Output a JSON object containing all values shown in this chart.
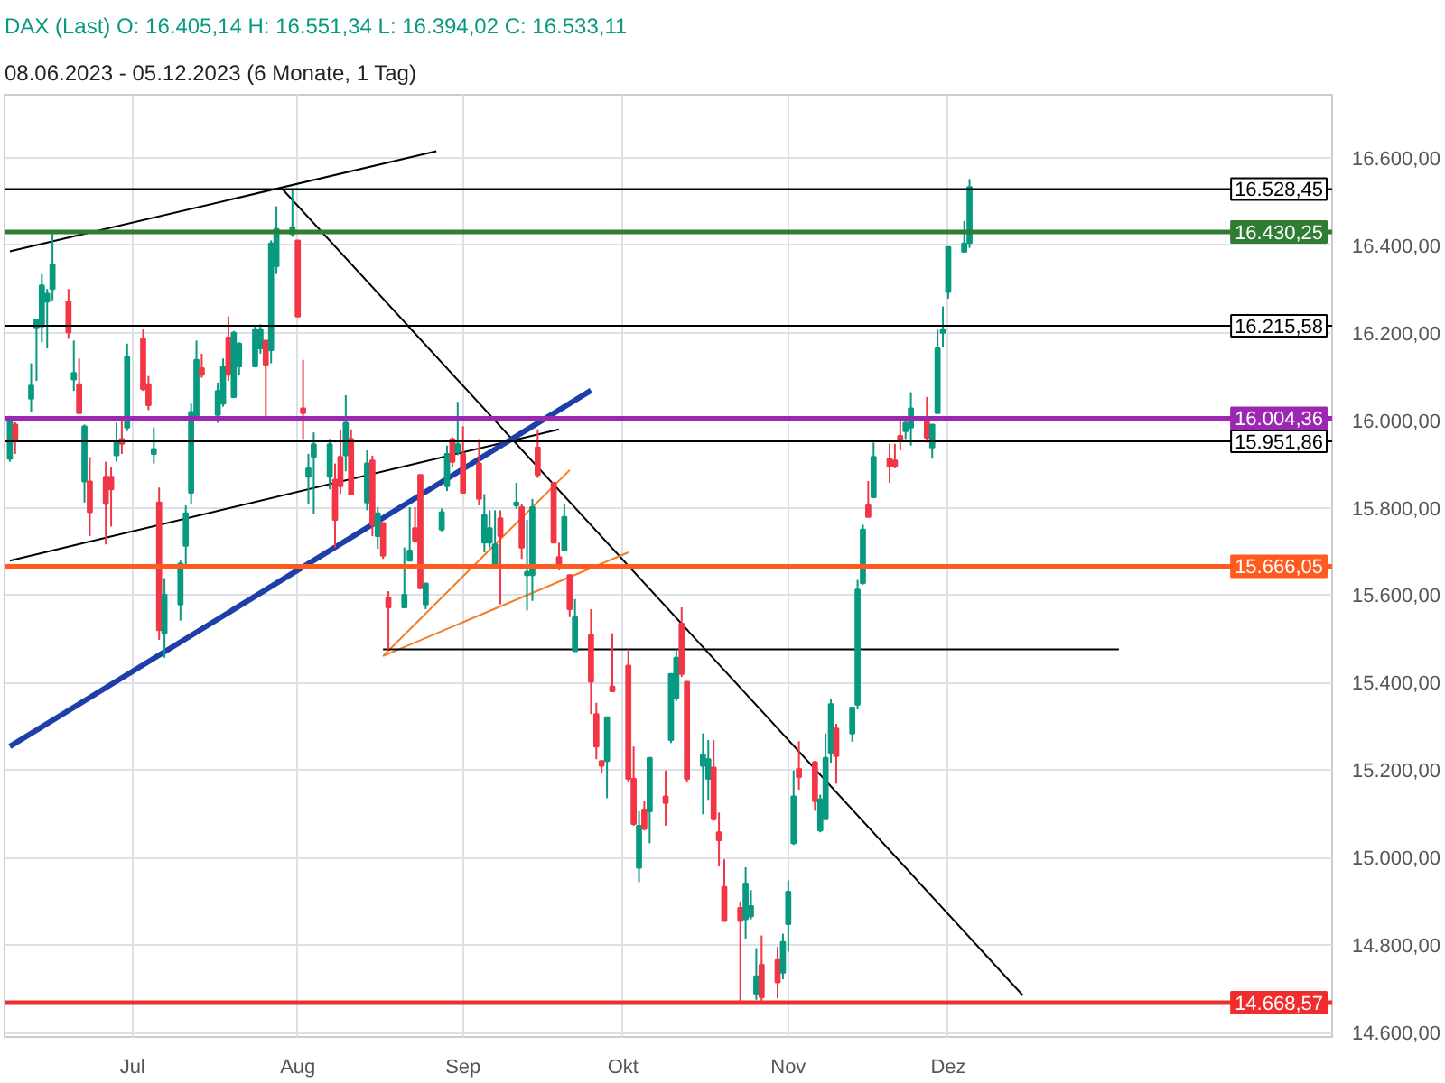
{
  "chart_data": {
    "type": "candlestick",
    "title": "DAX (Last)  O: 16.405,14  H: 16.551,34  L: 16.394,02  C: 16.533,11",
    "subtitle": "08.06.2023 - 05.12.2023   (6 Monate, 1 Tag)",
    "x": [
      "2023-06-08",
      "2023-06-09",
      "2023-06-12",
      "2023-06-13",
      "2023-06-14",
      "2023-06-15",
      "2023-06-16",
      "2023-06-19",
      "2023-06-20",
      "2023-06-21",
      "2023-06-22",
      "2023-06-23",
      "2023-06-26",
      "2023-06-27",
      "2023-06-28",
      "2023-06-29",
      "2023-06-30",
      "2023-07-03",
      "2023-07-04",
      "2023-07-05",
      "2023-07-06",
      "2023-07-07",
      "2023-07-10",
      "2023-07-11",
      "2023-07-12",
      "2023-07-13",
      "2023-07-14",
      "2023-07-17",
      "2023-07-18",
      "2023-07-19",
      "2023-07-20",
      "2023-07-21",
      "2023-07-24",
      "2023-07-25",
      "2023-07-26",
      "2023-07-27",
      "2023-07-28",
      "2023-07-31",
      "2023-08-01",
      "2023-08-02",
      "2023-08-03",
      "2023-08-04",
      "2023-08-07",
      "2023-08-08",
      "2023-08-09",
      "2023-08-10",
      "2023-08-11",
      "2023-08-14",
      "2023-08-15",
      "2023-08-16",
      "2023-08-17",
      "2023-08-18",
      "2023-08-21",
      "2023-08-22",
      "2023-08-23",
      "2023-08-24",
      "2023-08-25",
      "2023-08-28",
      "2023-08-29",
      "2023-08-30",
      "2023-08-31",
      "2023-09-01",
      "2023-09-04",
      "2023-09-05",
      "2023-09-06",
      "2023-09-07",
      "2023-09-08",
      "2023-09-11",
      "2023-09-12",
      "2023-09-13",
      "2023-09-14",
      "2023-09-15",
      "2023-09-18",
      "2023-09-19",
      "2023-09-20",
      "2023-09-21",
      "2023-09-22",
      "2023-09-25",
      "2023-09-26",
      "2023-09-27",
      "2023-09-28",
      "2023-09-29",
      "2023-10-02",
      "2023-10-03",
      "2023-10-04",
      "2023-10-05",
      "2023-10-06",
      "2023-10-09",
      "2023-10-10",
      "2023-10-11",
      "2023-10-12",
      "2023-10-13",
      "2023-10-16",
      "2023-10-17",
      "2023-10-18",
      "2023-10-19",
      "2023-10-20",
      "2023-10-23",
      "2023-10-24",
      "2023-10-25",
      "2023-10-26",
      "2023-10-27",
      "2023-10-30",
      "2023-10-31",
      "2023-11-01",
      "2023-11-02",
      "2023-11-03",
      "2023-11-06",
      "2023-11-07",
      "2023-11-08",
      "2023-11-09",
      "2023-11-10",
      "2023-11-13",
      "2023-11-14",
      "2023-11-15",
      "2023-11-16",
      "2023-11-17",
      "2023-11-20",
      "2023-11-21",
      "2023-11-22",
      "2023-11-23",
      "2023-11-24",
      "2023-11-27",
      "2023-11-28",
      "2023-11-29",
      "2023-11-30",
      "2023-12-01",
      "2023-12-04",
      "2023-12-05"
    ],
    "ohlc": [
      [
        15912,
        16010,
        15905,
        16000
      ],
      [
        15990,
        15995,
        15923,
        15957
      ],
      [
        16049,
        16130,
        16019,
        16079
      ],
      [
        16212,
        16232,
        16090,
        16230
      ],
      [
        16215,
        16334,
        16178,
        16308
      ],
      [
        16271,
        16300,
        16164,
        16289
      ],
      [
        16300,
        16430,
        16274,
        16356
      ],
      [
        16271,
        16300,
        16186,
        16201
      ],
      [
        16093,
        16182,
        16067,
        16108
      ],
      [
        16082,
        16141,
        16016,
        16016
      ],
      [
        15860,
        15990,
        15812,
        15986
      ],
      [
        15860,
        15916,
        15735,
        15790
      ],
      [
        15871,
        15905,
        15716,
        15809
      ],
      [
        15871,
        15894,
        15757,
        15842
      ],
      [
        15920,
        15994,
        15905,
        15949
      ],
      [
        15957,
        15998,
        15923,
        15946
      ],
      [
        15983,
        16175,
        15975,
        16145
      ],
      [
        16186,
        16208,
        16067,
        16071
      ],
      [
        16082,
        16101,
        16023,
        16034
      ],
      [
        15923,
        15983,
        15901,
        15934
      ],
      [
        15812,
        15846,
        15498,
        15520
      ],
      [
        15513,
        15639,
        15457,
        15601
      ],
      [
        15579,
        15679,
        15542,
        15672
      ],
      [
        15713,
        15805,
        15661,
        15787
      ],
      [
        15834,
        16038,
        15809,
        16019
      ],
      [
        16008,
        16182,
        16001,
        16138
      ],
      [
        16119,
        16152,
        16097,
        16104
      ],
      [
        16012,
        16086,
        15994,
        16067
      ],
      [
        16038,
        16141,
        16031,
        16123
      ],
      [
        16189,
        16237,
        16090,
        16104
      ],
      [
        16053,
        16204,
        16053,
        16200
      ],
      [
        16123,
        16178,
        16104,
        16175
      ],
      [
        16123,
        16215,
        16123,
        16208
      ],
      [
        16164,
        16219,
        16152,
        16208
      ],
      [
        16182,
        16182,
        16001,
        16127
      ],
      [
        16160,
        16411,
        16130,
        16404
      ],
      [
        16352,
        16489,
        16334,
        16437
      ],
      [
        16426,
        16526,
        16419,
        16441
      ],
      [
        16411,
        16411,
        16237,
        16237
      ],
      [
        16027,
        16138,
        15957,
        16016
      ],
      [
        15871,
        15923,
        15809,
        15890
      ],
      [
        15916,
        15972,
        15786,
        15945
      ],
      [
        15871,
        15957,
        15842,
        15945
      ],
      [
        15864,
        15901,
        15709,
        15772
      ],
      [
        15916,
        15979,
        15831,
        15849
      ],
      [
        15920,
        16057,
        15883,
        15994
      ],
      [
        15957,
        15979,
        15831,
        15831
      ],
      [
        15812,
        15931,
        15794,
        15901
      ],
      [
        15908,
        15919,
        15735,
        15761
      ],
      [
        15735,
        15802,
        15706,
        15787
      ],
      [
        15765,
        15765,
        15683,
        15690
      ],
      [
        15595,
        15609,
        15476,
        15572
      ],
      [
        15572,
        15709,
        15572,
        15601
      ],
      [
        15679,
        15801,
        15679,
        15702
      ],
      [
        15753,
        15801,
        15720,
        15724
      ],
      [
        15875,
        15875,
        15616,
        15616
      ],
      [
        15579,
        15627,
        15568,
        15627
      ],
      [
        15750,
        15798,
        15746,
        15790
      ],
      [
        15849,
        15942,
        15838,
        15923
      ],
      [
        15957,
        15961,
        15894,
        15905
      ],
      [
        15927,
        16042,
        15920,
        15945
      ],
      [
        15923,
        15986,
        15834,
        15834
      ],
      [
        15901,
        15957,
        15805,
        15820
      ],
      [
        15720,
        15831,
        15698,
        15783
      ],
      [
        15720,
        15794,
        15709,
        15753
      ],
      [
        15672,
        15794,
        15665,
        15716
      ],
      [
        15776,
        15794,
        15579,
        15735
      ],
      [
        15805,
        15857,
        15798,
        15812
      ],
      [
        15801,
        15809,
        15683,
        15709
      ],
      [
        15646,
        15772,
        15565,
        15653
      ],
      [
        15646,
        15820,
        15587,
        15801
      ],
      [
        15938,
        15979,
        15868,
        15875
      ],
      [
        15857,
        15857,
        15720,
        15720
      ],
      [
        15687,
        15720,
        15657,
        15661
      ],
      [
        15702,
        15809,
        15702,
        15779
      ],
      [
        15646,
        15646,
        15550,
        15568
      ],
      [
        15472,
        15591,
        15472,
        15550
      ],
      [
        15509,
        15568,
        15328,
        15402
      ],
      [
        15328,
        15354,
        15225,
        15254
      ],
      [
        15221,
        15221,
        15192,
        15210
      ],
      [
        15221,
        15321,
        15136,
        15321
      ],
      [
        15391,
        15513,
        15380,
        15380
      ],
      [
        15439,
        15476,
        15173,
        15180
      ],
      [
        15180,
        15254,
        15073,
        15077
      ],
      [
        14977,
        15106,
        14944,
        15073
      ],
      [
        15110,
        15129,
        15062,
        15066
      ],
      [
        15106,
        15228,
        15033,
        15228
      ],
      [
        15140,
        15199,
        15073,
        15125
      ],
      [
        15269,
        15420,
        15262,
        15420
      ],
      [
        15365,
        15476,
        15358,
        15457
      ],
      [
        15535,
        15572,
        15413,
        15420
      ],
      [
        15402,
        15402,
        15173,
        15180
      ],
      [
        15210,
        15284,
        15099,
        15236
      ],
      [
        15180,
        15269,
        15132,
        15225
      ],
      [
        15206,
        15269,
        15084,
        15088
      ],
      [
        15058,
        15103,
        14980,
        15040
      ],
      [
        14933,
        14996,
        14855,
        14855
      ],
      [
        14885,
        14900,
        14669,
        14855
      ],
      [
        14859,
        14978,
        14815,
        14941
      ],
      [
        14866,
        14926,
        14859,
        14889
      ],
      [
        14689,
        14793,
        14675,
        14729
      ],
      [
        14755,
        14822,
        14673,
        14681
      ],
      [
        14766,
        14796,
        14678,
        14715
      ],
      [
        14737,
        14826,
        14722,
        14807
      ],
      [
        14848,
        14948,
        14785,
        14922
      ],
      [
        15033,
        15199,
        15029,
        15140
      ],
      [
        15203,
        15266,
        15155,
        15184
      ],
      [
        15218,
        15221,
        15107,
        15129
      ],
      [
        15062,
        15144,
        15058,
        15133
      ],
      [
        15088,
        15284,
        15088,
        15228
      ],
      [
        15240,
        15362,
        15217,
        15351
      ],
      [
        15295,
        15306,
        15169,
        15232
      ],
      [
        15284,
        15343,
        15265,
        15343
      ],
      [
        15350,
        15635,
        15339,
        15613
      ],
      [
        15628,
        15761,
        15624,
        15750
      ],
      [
        15805,
        15861,
        15779,
        15779
      ],
      [
        15824,
        15949,
        15824,
        15916
      ],
      [
        15912,
        15946,
        15857,
        15894
      ],
      [
        15908,
        15946,
        15890,
        15894
      ],
      [
        15964,
        15998,
        15931,
        15953
      ],
      [
        15975,
        16008,
        15957,
        15994
      ],
      [
        15983,
        16064,
        15942,
        16027
      ],
      [
        16005,
        16053,
        15949,
        15960
      ],
      [
        15938,
        15990,
        15912,
        15990
      ],
      [
        16016,
        16207,
        16016,
        16164
      ],
      [
        16200,
        16260,
        16167,
        16208
      ],
      [
        16293,
        16396,
        16278,
        16396
      ],
      [
        16385,
        16455,
        16385,
        16404
      ],
      [
        16405.14,
        16551.34,
        16394.02,
        16533.11
      ]
    ],
    "colors": [
      "#089981",
      "#f23645",
      "#089981",
      "#089981",
      "#089981",
      "#089981",
      "#089981",
      "#f23645",
      "#089981",
      "#f23645",
      "#089981",
      "#f23645",
      "#f23645",
      "#f23645",
      "#089981",
      "#f23645",
      "#089981",
      "#f23645",
      "#f23645",
      "#089981",
      "#f23645",
      "#089981",
      "#089981",
      "#089981",
      "#089981",
      "#089981",
      "#f23645",
      "#089981",
      "#089981",
      "#f23645",
      "#089981",
      "#089981",
      "#089981",
      "#089981",
      "#f23645",
      "#089981",
      "#089981",
      "#089981",
      "#f23645",
      "#f23645",
      "#089981",
      "#089981",
      "#089981",
      "#f23645",
      "#f23645",
      "#089981",
      "#f23645",
      "#089981",
      "#f23645",
      "#089981",
      "#f23645",
      "#f23645",
      "#089981",
      "#089981",
      "#f23645",
      "#f23645",
      "#089981",
      "#089981",
      "#089981",
      "#f23645",
      "#089981",
      "#f23645",
      "#f23645",
      "#089981",
      "#089981",
      "#089981",
      "#f23645",
      "#089981",
      "#f23645",
      "#089981",
      "#089981",
      "#f23645",
      "#f23645",
      "#f23645",
      "#089981",
      "#f23645",
      "#089981",
      "#f23645",
      "#f23645",
      "#f23645",
      "#089981",
      "#f23645",
      "#f23645",
      "#f23645",
      "#089981",
      "#f23645",
      "#089981",
      "#f23645",
      "#089981",
      "#089981",
      "#f23645",
      "#f23645",
      "#089981",
      "#089981",
      "#f23645",
      "#f23645",
      "#f23645",
      "#f23645",
      "#089981",
      "#089981",
      "#089981",
      "#f23645",
      "#f23645",
      "#089981",
      "#089981",
      "#089981",
      "#f23645",
      "#f23645",
      "#089981",
      "#089981",
      "#089981",
      "#f23645",
      "#089981",
      "#089981",
      "#089981",
      "#f23645",
      "#089981",
      "#f23645",
      "#f23645",
      "#f23645",
      "#089981",
      "#089981",
      "#f23645",
      "#089981",
      "#089981",
      "#089981",
      "#089981",
      "#089981",
      "#089981"
    ],
    "series": [
      {
        "type": "line",
        "color": "#000000",
        "x": [
          "2023-06-08",
          "2023-08-27"
        ],
        "values": [
          16386,
          16615
        ]
      },
      {
        "type": "line",
        "color": "#000000",
        "x": [
          "2023-07-29",
          "2023-12-15"
        ],
        "values": [
          16530,
          14685
        ]
      },
      {
        "type": "line",
        "color": "#000000",
        "x": [
          "2023-06-08",
          "2023-09-19"
        ],
        "values": [
          15679,
          15979
        ]
      },
      {
        "type": "line",
        "color": "#1e3fa8",
        "x": [
          "2023-06-08",
          "2023-09-25"
        ],
        "values": [
          15254,
          16068
        ]
      },
      {
        "type": "line",
        "color": "#f57c22",
        "x": [
          "2023-08-17",
          "2023-09-21"
        ],
        "values": [
          15461,
          15886
        ]
      },
      {
        "type": "line",
        "color": "#f57c22",
        "x": [
          "2023-08-17",
          "2023-10-02"
        ],
        "values": [
          15461,
          15698
        ]
      },
      {
        "type": "line",
        "color": "#000000",
        "x": [
          "2023-08-17",
          "2024-01-02"
        ],
        "values": [
          15476,
          15476
        ]
      }
    ],
    "ref_lines": [
      {
        "axis": "y",
        "value": 16528.45,
        "label": "16.528,45",
        "color": "#000000"
      },
      {
        "axis": "y",
        "value": 16430.25,
        "label": "16.430,25",
        "color": "#2e7d32"
      },
      {
        "axis": "y",
        "value": 16215.58,
        "label": "16.215,58",
        "color": "#000000"
      },
      {
        "axis": "y",
        "value": 16004.36,
        "label": "16.004,36",
        "color": "#9c27b0"
      },
      {
        "axis": "y",
        "value": 15951.86,
        "label": "15.951,86",
        "color": "#000000"
      },
      {
        "axis": "y",
        "value": 15666.05,
        "label": "15.666,05",
        "color": "#ff5a1f"
      },
      {
        "axis": "y",
        "value": 14668.57,
        "label": "14.668,57",
        "color": "#f22c2c"
      }
    ],
    "xlim": [
      "2023-06-07",
      "2024-02-11"
    ],
    "xticks": [
      {
        "value": "2023-07-01",
        "label": "Jul"
      },
      {
        "value": "2023-08-01",
        "label": "Aug"
      },
      {
        "value": "2023-09-01",
        "label": "Sep"
      },
      {
        "value": "2023-10-01",
        "label": "Okt"
      },
      {
        "value": "2023-11-01",
        "label": "Nov"
      },
      {
        "value": "2023-12-01",
        "label": "Dez"
      }
    ],
    "ylim": [
      14590,
      16744
    ],
    "yticks": [
      {
        "value": 14600,
        "label": "14.600,00"
      },
      {
        "value": 14800,
        "label": "14.800,00"
      },
      {
        "value": 15000,
        "label": "15.000,00"
      },
      {
        "value": 15200,
        "label": "15.200,00"
      },
      {
        "value": 15400,
        "label": "15.400,00"
      },
      {
        "value": 15600,
        "label": "15.600,00"
      },
      {
        "value": 15800,
        "label": "15.800,00"
      },
      {
        "value": 16000,
        "label": "16.000,00"
      },
      {
        "value": 16200,
        "label": "16.200,00"
      },
      {
        "value": 16400,
        "label": "16.400,00"
      },
      {
        "value": 16600,
        "label": "16.600,00"
      }
    ],
    "grid": true
  }
}
